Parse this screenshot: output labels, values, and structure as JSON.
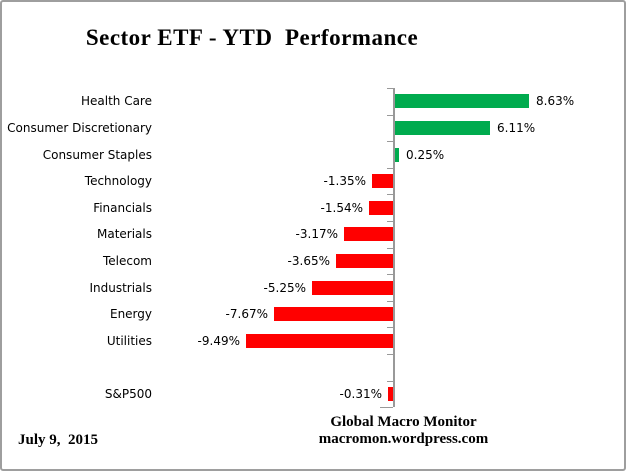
{
  "chart_data": {
    "type": "bar",
    "orientation": "horizontal",
    "title": "Sector ETF - YTD  Performance",
    "categories": [
      "Health Care",
      "Consumer Discretionary",
      "Consumer Staples",
      "Technology",
      "Financials",
      "Materials",
      "Telecom",
      "Industrials",
      "Energy",
      "Utilities",
      "S&P500"
    ],
    "values": [
      8.63,
      6.11,
      0.25,
      -1.35,
      -1.54,
      -3.17,
      -3.65,
      -5.25,
      -7.67,
      -9.49,
      -0.31
    ],
    "value_labels": [
      "8.63%",
      "6.11%",
      "0.25%",
      "-1.35%",
      "-1.54%",
      "-3.17%",
      "-3.65%",
      "-5.25%",
      "-7.67%",
      "-9.49%",
      "-0.31%"
    ],
    "xlim": [
      -10,
      9.5
    ],
    "grid": false,
    "legend": false,
    "gap_before_index": 10,
    "colors": {
      "positive": "#00AB4E",
      "negative": "#FF0000",
      "axis": "#999999",
      "text": "#000000"
    }
  },
  "footer": {
    "date": "July 9,  2015",
    "credit_line1": "Global Macro Monitor",
    "credit_line2": "macromon.wordpress.com"
  }
}
